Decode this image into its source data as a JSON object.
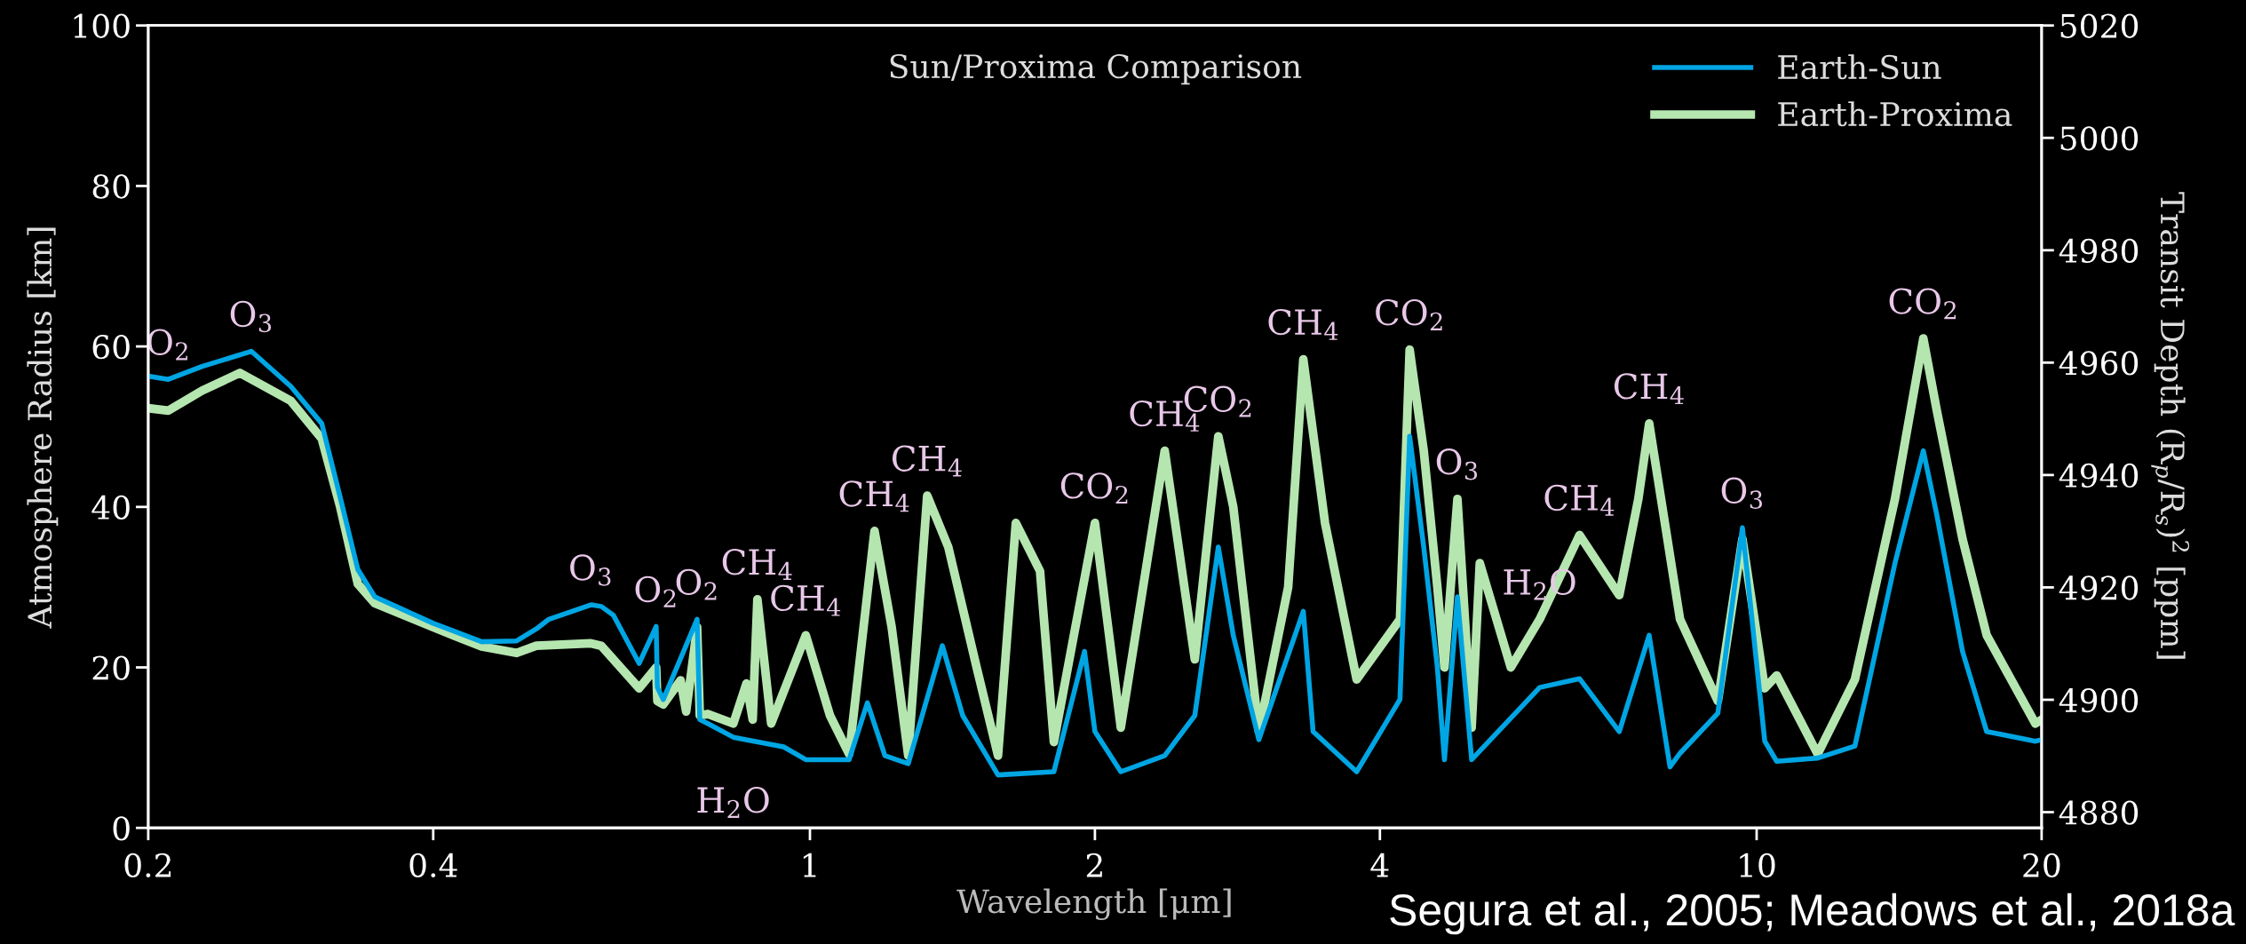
{
  "chart_data": {
    "type": "line",
    "title": "Sun/Proxima Comparison",
    "xlabel": "Wavelength [μm]",
    "ylabel": "Atmosphere Radius [km]",
    "y2label": "Transit Depth (R$_{p}$/R$_{s}$)$^{2}$ [ppm]",
    "log": "x",
    "xlim": [
      0.2,
      20
    ],
    "xticks": [
      0.2,
      0.4,
      1,
      2,
      4,
      10,
      20
    ],
    "ylim": [
      0,
      100
    ],
    "yticks": [
      0,
      20,
      40,
      60,
      80,
      100
    ],
    "y2lim": [
      4877.2,
      5020
    ],
    "y2ticks": [
      4880,
      4900,
      4920,
      4940,
      4960,
      4980,
      5000,
      5020
    ],
    "grid": false,
    "legend": "top right",
    "marker": "none",
    "line_style": "solid",
    "series": [
      {
        "name": "Earth-Sun",
        "color": "#00a5e3",
        "x": [
          0.2,
          0.21,
          0.228,
          0.257,
          0.283,
          0.305,
          0.319,
          0.333,
          0.347,
          0.4,
          0.45,
          0.49,
          0.514,
          0.53,
          0.587,
          0.602,
          0.62,
          0.66,
          0.688,
          0.69,
          0.7,
          0.76,
          0.765,
          0.78,
          0.83,
          0.938,
          0.99,
          1.1,
          1.15,
          1.2,
          1.27,
          1.38,
          1.45,
          1.58,
          1.81,
          1.95,
          2.0,
          2.13,
          2.37,
          2.55,
          2.7,
          2.8,
          2.98,
          3.32,
          3.4,
          3.78,
          4.2,
          4.3,
          4.45,
          4.6,
          4.68,
          4.83,
          5.0,
          5.9,
          6.5,
          7.16,
          7.7,
          8.1,
          8.3,
          9.1,
          9.66,
          10.2,
          10.5,
          11.6,
          12.7,
          14.0,
          15.0,
          15.5,
          16.5,
          17.5,
          19.7,
          20
        ],
        "values": [
          56.3,
          55.9,
          57.5,
          59.4,
          55,
          50.4,
          41.2,
          32.2,
          28.8,
          25.5,
          23.2,
          23.3,
          24.8,
          26,
          27.8,
          27.6,
          26.5,
          20.5,
          25.1,
          17.5,
          16,
          26,
          13.5,
          13,
          11.3,
          10.1,
          8.5,
          8.5,
          15.6,
          9,
          8,
          22.7,
          14,
          6.6,
          7,
          22,
          12,
          7,
          9,
          14,
          35,
          24,
          11,
          27,
          12,
          7,
          16,
          48.8,
          35,
          20,
          8.5,
          28.8,
          8.5,
          17.5,
          18.6,
          12,
          24,
          7.6,
          9.3,
          14.3,
          37.4,
          10.8,
          8.3,
          8.7,
          10.2,
          33,
          47,
          39,
          22,
          12,
          10.8,
          11
        ]
      },
      {
        "name": "Earth-Proxima",
        "color": "#b5e6b0",
        "x": [
          0.2,
          0.21,
          0.228,
          0.25,
          0.283,
          0.305,
          0.319,
          0.333,
          0.347,
          0.4,
          0.45,
          0.49,
          0.514,
          0.587,
          0.602,
          0.66,
          0.688,
          0.69,
          0.7,
          0.73,
          0.74,
          0.76,
          0.765,
          0.78,
          0.83,
          0.857,
          0.87,
          0.88,
          0.91,
          0.99,
          1.05,
          1.1,
          1.17,
          1.22,
          1.27,
          1.33,
          1.4,
          1.5,
          1.58,
          1.65,
          1.75,
          1.81,
          2.0,
          2.13,
          2.37,
          2.55,
          2.7,
          2.8,
          2.98,
          3.2,
          3.32,
          3.5,
          3.78,
          4.2,
          4.3,
          4.45,
          4.6,
          4.68,
          4.83,
          5.0,
          5.1,
          5.5,
          5.9,
          6.5,
          7.16,
          7.5,
          7.7,
          8.3,
          9.1,
          9.66,
          10.2,
          10.5,
          11.6,
          12.7,
          14.0,
          15.0,
          15.5,
          16.5,
          17.5,
          19.7,
          20
        ],
        "values": [
          52.3,
          52,
          54.5,
          56.7,
          53.2,
          48.5,
          40,
          30.4,
          28,
          25,
          22.6,
          21.8,
          22.7,
          23,
          22.7,
          17.4,
          20,
          15.8,
          15.4,
          18.4,
          14.5,
          25,
          14,
          14.2,
          13,
          18,
          13.5,
          28.5,
          13,
          24,
          14,
          9.2,
          37,
          25,
          9,
          41.4,
          35,
          20,
          9,
          38,
          32,
          10.7,
          38,
          12.5,
          47,
          21,
          48.8,
          40,
          12,
          30,
          58.4,
          38,
          18.5,
          26,
          59.6,
          47,
          30,
          20,
          41,
          12.5,
          33,
          20,
          26,
          36.5,
          29,
          41,
          50.4,
          26,
          15.8,
          36,
          17.4,
          19,
          9.2,
          18.5,
          41,
          61,
          52,
          36,
          24,
          13,
          13.5
        ]
      }
    ],
    "annotations": [
      {
        "text": "O$_{2}$",
        "x": 0.21,
        "y": 55.9
      },
      {
        "text": "O$_{3}$",
        "x": 0.257,
        "y": 59.4
      },
      {
        "text": "O$_{3}$",
        "x": 0.587,
        "y": 27.8
      },
      {
        "text": "O$_{2}$",
        "x": 0.688,
        "y": 25.1
      },
      {
        "text": "O$_{2}$",
        "x": 0.76,
        "y": 26
      },
      {
        "text": "CH$_{4}$",
        "x": 0.88,
        "y": 28.5
      },
      {
        "text": "CH$_{4}$",
        "x": 0.99,
        "y": 24
      },
      {
        "text": "H$_{2}$O",
        "x": 0.83,
        "y": 11.3
      },
      {
        "text": "CH$_{4}$",
        "x": 1.17,
        "y": 37
      },
      {
        "text": "CH$_{4}$",
        "x": 1.33,
        "y": 41.4
      },
      {
        "text": "CO$_{2}$",
        "x": 2.0,
        "y": 38
      },
      {
        "text": "CH$_{4}$",
        "x": 2.37,
        "y": 47
      },
      {
        "text": "CO$_{2}$",
        "x": 2.7,
        "y": 48.8
      },
      {
        "text": "CH$_{4}$",
        "x": 3.32,
        "y": 58.4
      },
      {
        "text": "CO$_{2}$",
        "x": 4.3,
        "y": 59.6
      },
      {
        "text": "O$_{3}$",
        "x": 4.83,
        "y": 41
      },
      {
        "text": "H$_{2}$O",
        "x": 5.9,
        "y": 26
      },
      {
        "text": "CH$_{4}$",
        "x": 6.5,
        "y": 36.5
      },
      {
        "text": "CH$_{4}$",
        "x": 7.7,
        "y": 50.4
      },
      {
        "text": "O$_{3}$",
        "x": 9.66,
        "y": 37.4
      },
      {
        "text": "CO$_{2}$",
        "x": 15.0,
        "y": 61
      },
      "Segura et al., 2005; Meadows et al., 2018a"
    ]
  }
}
